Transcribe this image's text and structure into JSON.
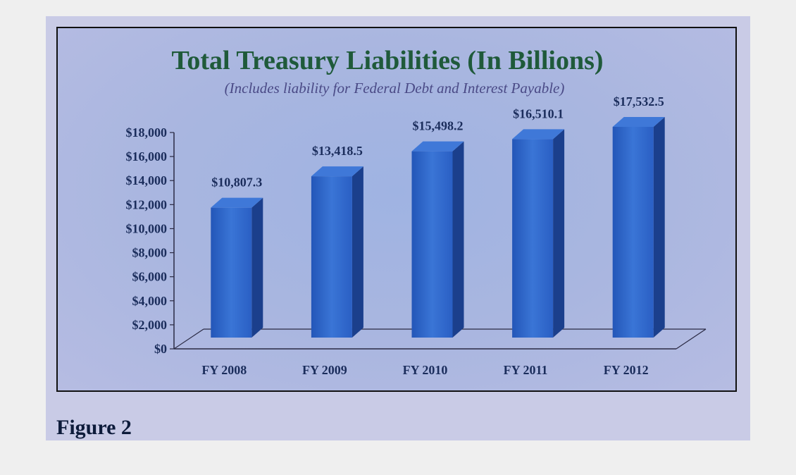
{
  "figure_label": "Figure 2",
  "chart_data": {
    "type": "bar",
    "title": "Total Treasury Liabilities (In Billions)",
    "subtitle": "(Includes liability for Federal Debt and Interest Payable)",
    "categories": [
      "FY 2008",
      "FY 2009",
      "FY 2010",
      "FY 2011",
      "FY 2012"
    ],
    "values": [
      10807.3,
      13418.5,
      15498.2,
      16510.1,
      17532.5
    ],
    "value_labels": [
      "$10,807.3",
      "$13,418.5",
      "$15,498.2",
      "$16,510.1",
      "$17,532.5"
    ],
    "y_ticks": [
      "$0",
      "$2,000",
      "$4,000",
      "$6,000",
      "$8,000",
      "$10,000",
      "$12,000",
      "$14,000",
      "$16,000",
      "$18,000"
    ],
    "ylim": [
      0,
      18000
    ],
    "bar_color": "#2a5cc0",
    "title_color": "#1f5a3a",
    "subtitle_color": "#4a4a86",
    "label_color": "#1b2d5c"
  }
}
